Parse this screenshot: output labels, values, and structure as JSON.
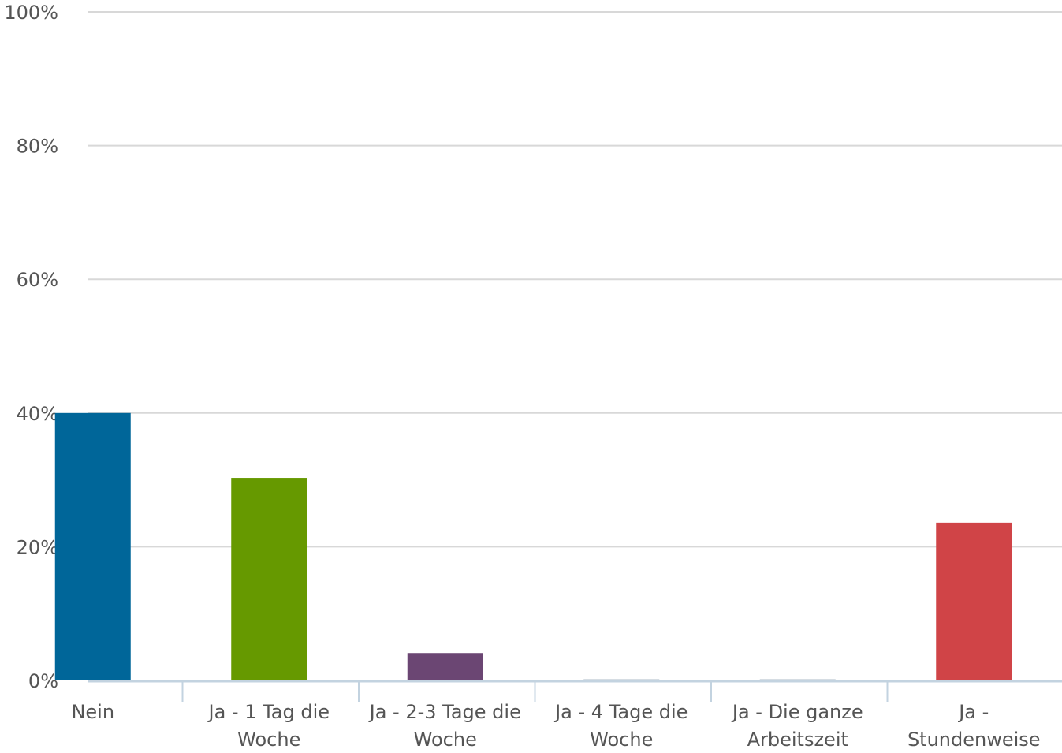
{
  "chart_data": {
    "type": "bar",
    "categories": [
      [
        "Nein"
      ],
      [
        "Ja - 1 Tag die",
        "Woche"
      ],
      [
        "Ja - 2-3 Tage die",
        "Woche"
      ],
      [
        "Ja - 4 Tage die",
        "Woche"
      ],
      [
        "Ja - Die ganze",
        "Arbeitszeit"
      ],
      [
        "Ja -",
        "Stundenweise"
      ]
    ],
    "values": [
      40.0,
      30.3,
      4.1,
      0,
      0,
      23.6
    ],
    "colors": [
      "#006699",
      "#669900",
      "#6b4673",
      "#cccccc",
      "#cccccc",
      "#d04447"
    ],
    "ylim": [
      0,
      100
    ],
    "yticks": [
      0,
      20,
      40,
      60,
      80,
      100
    ],
    "ytick_labels": [
      "0%",
      "20%",
      "40%",
      "60%",
      "80%",
      "100%"
    ],
    "grid": true,
    "title": "",
    "xlabel": "",
    "ylabel": ""
  }
}
